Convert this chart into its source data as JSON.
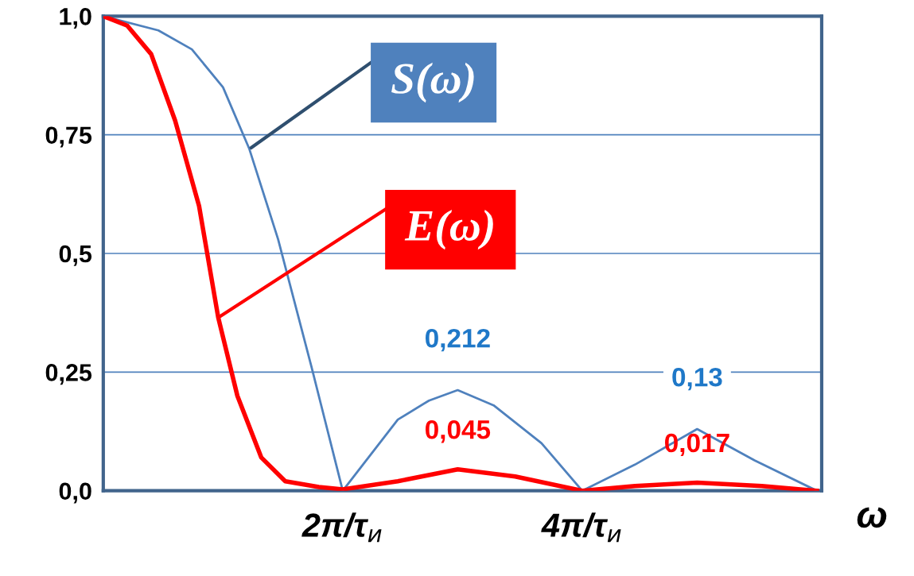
{
  "chart_data": {
    "type": "line",
    "xlabel": "ω",
    "xlim": [
      0,
      6
    ],
    "xticks": [
      {
        "value": 2,
        "label": "2π/τ$_{и}$"
      },
      {
        "value": 4,
        "label": "4π/τ$_{и}$"
      }
    ],
    "ylim": [
      0,
      1
    ],
    "yticks": [
      {
        "value": 0,
        "label": "0,0"
      },
      {
        "value": 0.25,
        "label": "0,25"
      },
      {
        "value": 0.5,
        "label": "0,5"
      },
      {
        "value": 0.75,
        "label": "0,75"
      },
      {
        "value": 1,
        "label": "1,0"
      }
    ],
    "grid": "y",
    "marker": "none",
    "line_style": "solid",
    "series": [
      {
        "name": "S(ω)",
        "color": "#4f81bd",
        "x": [
          0,
          0.46,
          0.74,
          1.0,
          1.22,
          1.46,
          1.74,
          2.0,
          2.46,
          2.72,
          2.96,
          3.26,
          3.66,
          4.0,
          4.44,
          4.96,
          5.44,
          5.96
        ],
        "values": [
          1.0,
          0.97,
          0.93,
          0.85,
          0.72,
          0.53,
          0.26,
          0.0,
          0.15,
          0.19,
          0.212,
          0.18,
          0.1,
          0.0,
          0.055,
          0.13,
          0.064,
          0.0
        ],
        "value_labels": [
          null,
          null,
          null,
          null,
          null,
          null,
          null,
          null,
          null,
          null,
          "0,212",
          null,
          null,
          null,
          null,
          "0,13",
          null,
          null
        ]
      },
      {
        "name": "E(ω)",
        "color": "#ff0000",
        "x": [
          0,
          0.2,
          0.4,
          0.6,
          0.8,
          0.96,
          1.12,
          1.32,
          1.52,
          1.8,
          2.0,
          2.46,
          2.96,
          3.44,
          4.0,
          4.44,
          4.96,
          5.5,
          5.96
        ],
        "values": [
          1.0,
          0.98,
          0.92,
          0.78,
          0.6,
          0.365,
          0.2,
          0.07,
          0.02,
          0.008,
          0.003,
          0.02,
          0.045,
          0.03,
          0.0,
          0.01,
          0.017,
          0.01,
          0.0
        ],
        "value_labels": [
          null,
          null,
          null,
          null,
          null,
          null,
          null,
          null,
          null,
          null,
          null,
          null,
          "0,045",
          null,
          null,
          null,
          "0,017",
          null,
          null
        ]
      }
    ]
  }
}
